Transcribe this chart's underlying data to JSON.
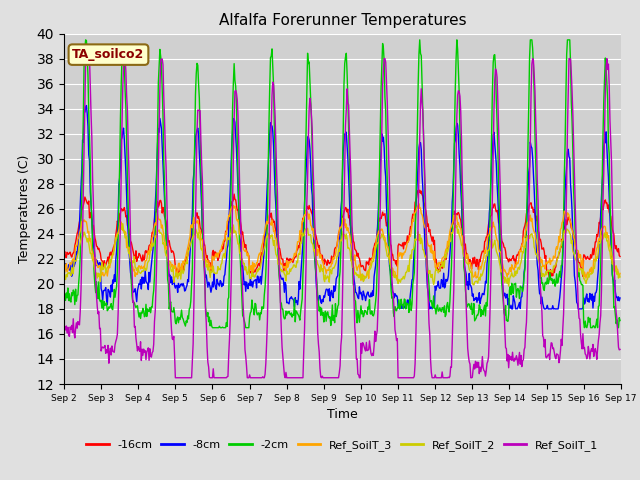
{
  "title": "Alfalfa Forerunner Temperatures",
  "ylabel": "Temperatures (C)",
  "xlabel": "Time",
  "ylim": [
    12,
    40
  ],
  "annotation": "TA_soilco2",
  "series_names": [
    "-16cm",
    "-8cm",
    "-2cm",
    "Ref_SoilT_3",
    "Ref_SoilT_2",
    "Ref_SoilT_1"
  ],
  "series_colors": [
    "#FF0000",
    "#0000FF",
    "#00CC00",
    "#FFA500",
    "#CCCC00",
    "#BB00BB"
  ],
  "background_color": "#E0E0E0",
  "plot_bg_color": "#D0D0D0",
  "n_days": 15,
  "start_day": 2,
  "tick_labels": [
    "Sep 2",
    "Sep 3",
    "Sep 4",
    "Sep 5",
    "Sep 6",
    "Sep 7",
    "Sep 8",
    "Sep 9",
    "Sep 10",
    "Sep 11",
    "Sep 12",
    "Sep 13",
    "Sep 14",
    "Sep 15",
    "Sep 16",
    "Sep 17"
  ]
}
